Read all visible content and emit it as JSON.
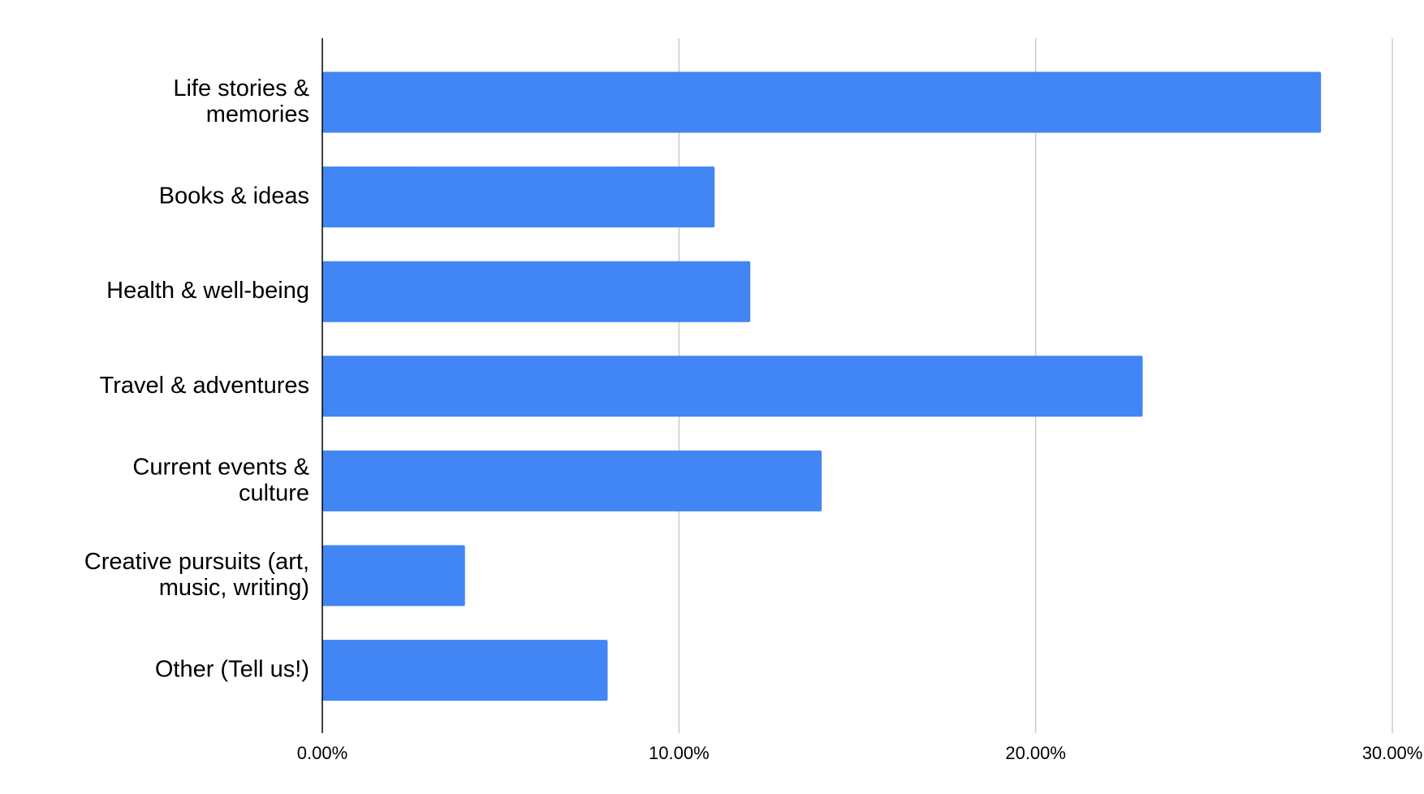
{
  "chart_data": {
    "type": "bar",
    "orientation": "horizontal",
    "categories": [
      "Life stories &\nmemories",
      "Books & ideas",
      "Health & well-being",
      "Travel & adventures",
      "Current events &\nculture",
      "Creative pursuits (art,\nmusic, writing)",
      "Other (Tell us!)"
    ],
    "values": [
      28,
      11,
      12,
      23,
      14,
      4,
      8
    ],
    "color": "#4285f4",
    "xlim": [
      0,
      30
    ],
    "xticks": [
      {
        "value": 0,
        "label": "0.00%"
      },
      {
        "value": 10,
        "label": "10.00%"
      },
      {
        "value": 20,
        "label": "20.00%"
      },
      {
        "value": 30,
        "label": "30.00%"
      }
    ],
    "grid": true
  }
}
